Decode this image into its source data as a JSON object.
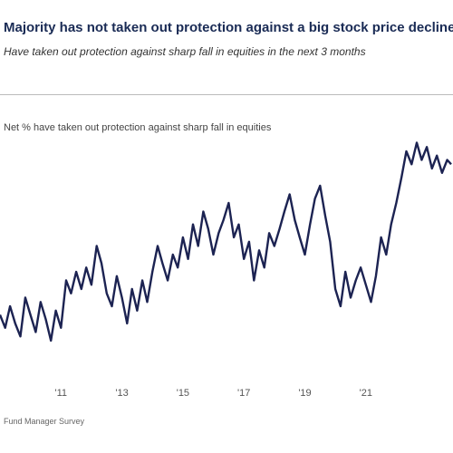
{
  "title": "Majority has not taken out protection against a big stock price decline",
  "subtitle": "Have taken out protection against sharp fall in equities in the next 3 months",
  "source": "Fund Manager Survey",
  "colors": {
    "line": "#1c2352",
    "title": "#1a2b55"
  },
  "chart_data": {
    "type": "line",
    "title": "Majority has not taken out protection against a big stock price decline",
    "subtitle": "Have taken out protection against sharp fall in equities in the next 3 months",
    "xlabel": "",
    "ylabel": "",
    "grid": false,
    "legend_position": "top-left",
    "xlim": [
      2009.0,
      2023.8
    ],
    "ylim": [
      -40,
      20
    ],
    "x_tick_labels": [
      "'11",
      "'13",
      "'15",
      "'17",
      "'19",
      "'21"
    ],
    "x_tick_values": [
      2011,
      2013,
      2015,
      2017,
      2019,
      2021
    ],
    "series": [
      {
        "name": "Net % have taken out protection against sharp fall in equities",
        "x": [
          2009.0,
          2009.17,
          2009.33,
          2009.5,
          2009.67,
          2009.83,
          2010.0,
          2010.17,
          2010.33,
          2010.5,
          2010.67,
          2010.83,
          2011.0,
          2011.17,
          2011.33,
          2011.5,
          2011.67,
          2011.83,
          2012.0,
          2012.17,
          2012.33,
          2012.5,
          2012.67,
          2012.83,
          2013.0,
          2013.17,
          2013.33,
          2013.5,
          2013.67,
          2013.83,
          2014.0,
          2014.17,
          2014.33,
          2014.5,
          2014.67,
          2014.83,
          2015.0,
          2015.17,
          2015.33,
          2015.5,
          2015.67,
          2015.83,
          2016.0,
          2016.17,
          2016.33,
          2016.5,
          2016.67,
          2016.83,
          2017.0,
          2017.17,
          2017.33,
          2017.5,
          2017.67,
          2017.83,
          2018.0,
          2018.17,
          2018.33,
          2018.5,
          2018.67,
          2018.83,
          2019.0,
          2019.17,
          2019.33,
          2019.5,
          2019.67,
          2019.83,
          2020.0,
          2020.17,
          2020.33,
          2020.5,
          2020.67,
          2020.83,
          2021.0,
          2021.17,
          2021.33,
          2021.5,
          2021.67,
          2021.83,
          2022.0,
          2022.17,
          2022.33,
          2022.5,
          2022.67,
          2022.83,
          2023.0,
          2023.17,
          2023.33,
          2023.5,
          2023.67,
          2023.8
        ],
        "y": [
          -30,
          -33,
          -28,
          -32,
          -35,
          -26,
          -30,
          -34,
          -27,
          -31,
          -36,
          -29,
          -33,
          -22,
          -25,
          -20,
          -24,
          -19,
          -23,
          -14,
          -18,
          -25,
          -28,
          -21,
          -26,
          -32,
          -24,
          -29,
          -22,
          -27,
          -20,
          -14,
          -18,
          -22,
          -16,
          -19,
          -12,
          -17,
          -9,
          -14,
          -6,
          -10,
          -16,
          -11,
          -8,
          -4,
          -12,
          -9,
          -17,
          -13,
          -22,
          -15,
          -19,
          -11,
          -14,
          -10,
          -6,
          -2,
          -8,
          -12,
          -16,
          -9,
          -3,
          0,
          -7,
          -13,
          -24,
          -28,
          -20,
          -26,
          -22,
          -19,
          -23,
          -27,
          -21,
          -12,
          -16,
          -9,
          -4,
          2,
          8,
          5,
          10,
          6,
          9,
          4,
          7,
          3,
          6,
          5
        ]
      }
    ]
  }
}
